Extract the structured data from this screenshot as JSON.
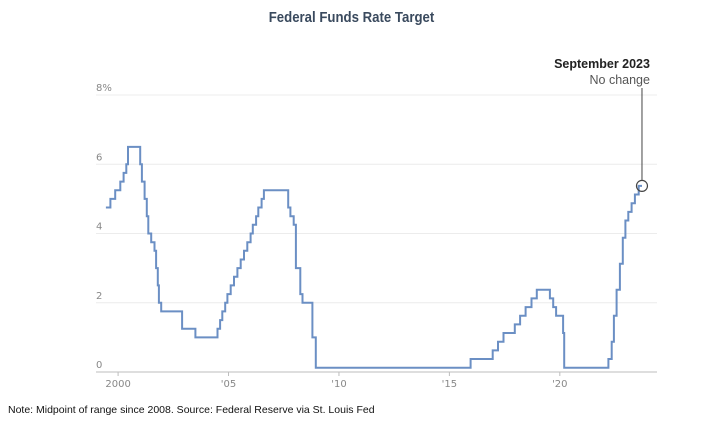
{
  "chart_data": {
    "type": "line",
    "title": "Federal Funds Rate Target",
    "xlabel": "",
    "ylabel": "",
    "xlim": [
      1999.0,
      2024.4
    ],
    "ylim": [
      0,
      8
    ],
    "grid": true,
    "yticks": [
      {
        "value": 8,
        "label": "8%"
      },
      {
        "value": 6,
        "label": "6"
      },
      {
        "value": 4,
        "label": "4"
      },
      {
        "value": 2,
        "label": "2"
      },
      {
        "value": 0,
        "label": "0"
      }
    ],
    "xticks": [
      {
        "value": 2000,
        "label": "2000"
      },
      {
        "value": 2005,
        "label": "'05"
      },
      {
        "value": 2010,
        "label": "'10"
      },
      {
        "value": 2015,
        "label": "'15"
      },
      {
        "value": 2020,
        "label": "'20"
      }
    ],
    "series": [
      {
        "color": "#6b8fc4",
        "step": true,
        "points": [
          [
            1999.45,
            4.75
          ],
          [
            1999.65,
            5.0
          ],
          [
            1999.87,
            5.25
          ],
          [
            2000.1,
            5.5
          ],
          [
            2000.25,
            5.75
          ],
          [
            2000.37,
            6.0
          ],
          [
            2000.45,
            6.5
          ],
          [
            2001.0,
            6.0
          ],
          [
            2001.08,
            5.5
          ],
          [
            2001.2,
            5.0
          ],
          [
            2001.3,
            4.5
          ],
          [
            2001.37,
            4.0
          ],
          [
            2001.5,
            3.75
          ],
          [
            2001.65,
            3.5
          ],
          [
            2001.72,
            3.0
          ],
          [
            2001.8,
            2.5
          ],
          [
            2001.85,
            2.0
          ],
          [
            2001.95,
            1.75
          ],
          [
            2002.9,
            1.25
          ],
          [
            2003.5,
            1.0
          ],
          [
            2004.5,
            1.25
          ],
          [
            2004.62,
            1.5
          ],
          [
            2004.72,
            1.75
          ],
          [
            2004.85,
            2.0
          ],
          [
            2004.95,
            2.25
          ],
          [
            2005.1,
            2.5
          ],
          [
            2005.25,
            2.75
          ],
          [
            2005.4,
            3.0
          ],
          [
            2005.55,
            3.25
          ],
          [
            2005.7,
            3.5
          ],
          [
            2005.85,
            3.75
          ],
          [
            2006.0,
            4.0
          ],
          [
            2006.1,
            4.25
          ],
          [
            2006.25,
            4.5
          ],
          [
            2006.35,
            4.75
          ],
          [
            2006.5,
            5.0
          ],
          [
            2006.6,
            5.25
          ],
          [
            2007.7,
            4.75
          ],
          [
            2007.8,
            4.5
          ],
          [
            2007.95,
            4.25
          ],
          [
            2008.05,
            3.0
          ],
          [
            2008.1,
            3.0
          ],
          [
            2008.25,
            2.25
          ],
          [
            2008.35,
            2.0
          ],
          [
            2008.8,
            1.0
          ],
          [
            2008.95,
            0.125
          ],
          [
            2015.96,
            0.375
          ],
          [
            2016.96,
            0.625
          ],
          [
            2017.2,
            0.875
          ],
          [
            2017.45,
            1.125
          ],
          [
            2017.96,
            1.375
          ],
          [
            2018.2,
            1.625
          ],
          [
            2018.45,
            1.875
          ],
          [
            2018.72,
            2.125
          ],
          [
            2018.96,
            2.375
          ],
          [
            2019.55,
            2.125
          ],
          [
            2019.7,
            1.875
          ],
          [
            2019.83,
            1.625
          ],
          [
            2020.15,
            1.125
          ],
          [
            2020.2,
            0.125
          ],
          [
            2022.2,
            0.375
          ],
          [
            2022.35,
            0.875
          ],
          [
            2022.45,
            1.625
          ],
          [
            2022.57,
            2.375
          ],
          [
            2022.72,
            3.125
          ],
          [
            2022.85,
            3.875
          ],
          [
            2022.97,
            4.375
          ],
          [
            2023.1,
            4.625
          ],
          [
            2023.25,
            4.875
          ],
          [
            2023.4,
            5.125
          ],
          [
            2023.57,
            5.375
          ],
          [
            2023.72,
            5.375
          ]
        ]
      }
    ],
    "annotation": {
      "x": 2023.72,
      "y": 5.375,
      "title": "September 2023",
      "text": "No change"
    },
    "note": "Note: Midpoint of range since 2008. Source: Federal Reserve via St. Louis Fed"
  }
}
